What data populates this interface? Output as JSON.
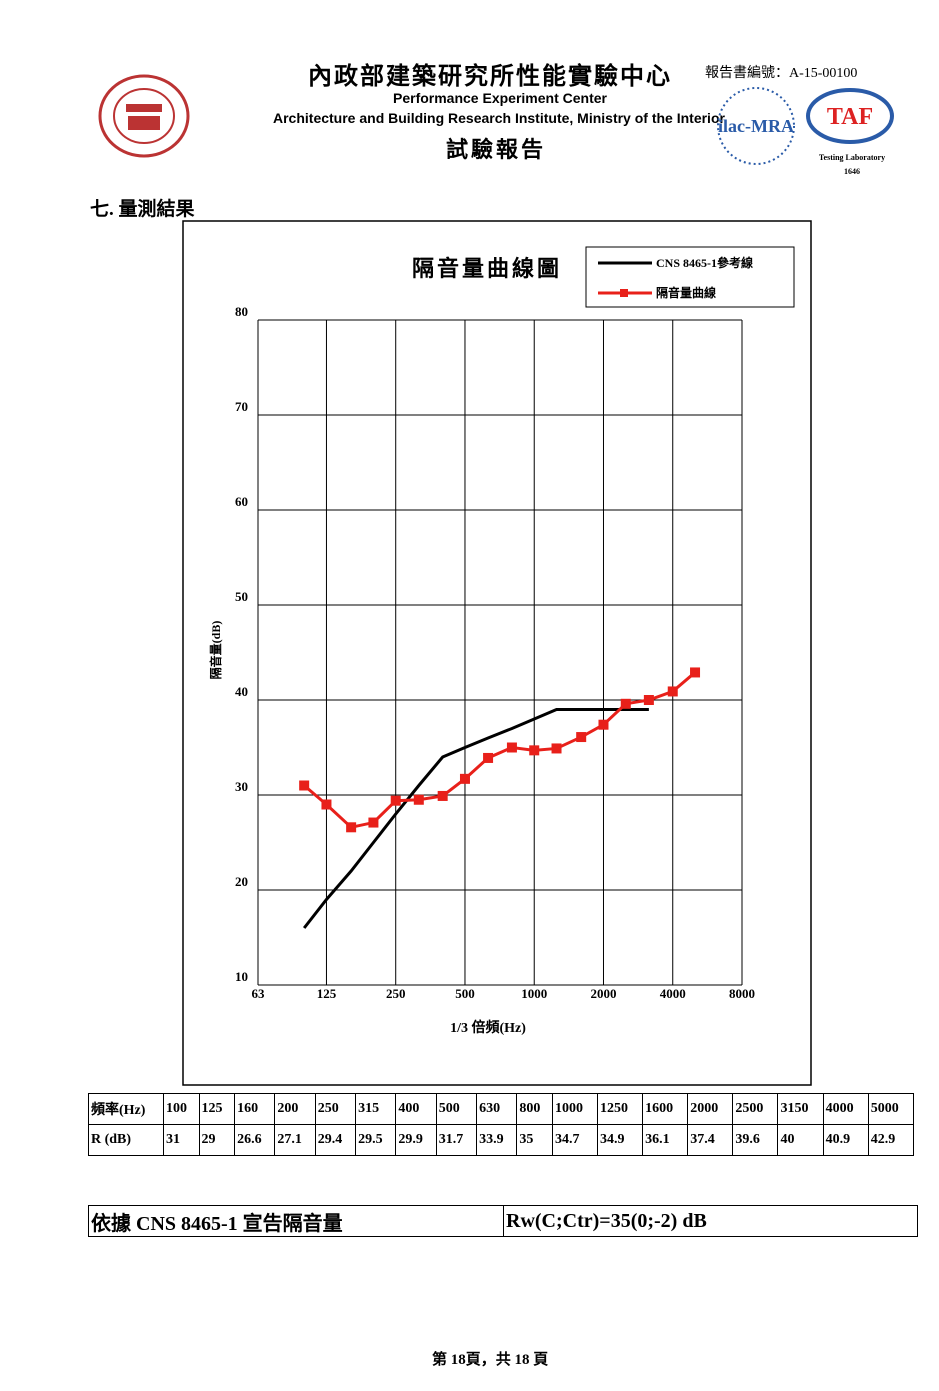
{
  "header": {
    "title_zh": "內政部建築研究所性能實驗中心",
    "title_en_1": "Performance Experiment Center",
    "title_en_2": "Architecture and Building Research Institute, Ministry of the Interior",
    "report_type": "試驗報告",
    "report_no": "報告書編號：A-15-00100",
    "ilac": "ilac-MRA",
    "taf": "TAF",
    "lab_label": "Testing Laboratory",
    "lab_no": "1646"
  },
  "section_title": "七. 量測結果",
  "chart_data": {
    "type": "line",
    "title": "隔音量曲線圖",
    "x_label": "1/3 倍頻(Hz)",
    "y_label": "隔音量(dB)",
    "x": [
      100,
      125,
      160,
      200,
      250,
      315,
      400,
      500,
      630,
      800,
      1000,
      1250,
      1600,
      2000,
      2500,
      3150,
      4000,
      5000
    ],
    "series": [
      {
        "name": "CNS 8465-1參考線",
        "color": "#000000",
        "marker": "none",
        "values": [
          16,
          19,
          22,
          25,
          28,
          31,
          34,
          35,
          36,
          37,
          38,
          39,
          39,
          39,
          39,
          39,
          null,
          null
        ]
      },
      {
        "name": "隔音量曲線",
        "color": "#e8201a",
        "marker": "square",
        "values": [
          31,
          29,
          26.6,
          27.1,
          29.4,
          29.5,
          29.9,
          31.7,
          33.9,
          35,
          34.7,
          34.9,
          36.1,
          37.4,
          39.6,
          40,
          40.9,
          42.9
        ]
      }
    ],
    "xlim": [
      63,
      8000
    ],
    "xticks": [
      63,
      125,
      250,
      500,
      1000,
      2000,
      4000,
      8000
    ],
    "log_x": true,
    "ylim": [
      10,
      80
    ],
    "yticks": [
      10,
      20,
      30,
      40,
      50,
      60,
      70,
      80
    ],
    "grid": true,
    "legend": "top-right"
  },
  "table": {
    "rows": [
      [
        "頻率(Hz)",
        "100",
        "125",
        "160",
        "200",
        "250",
        "315",
        "400",
        "500",
        "630",
        "800",
        "1000",
        "1250",
        "1600",
        "2000",
        "2500",
        "3150",
        "4000",
        "5000"
      ],
      [
        "R (dB)",
        "31",
        "29",
        "26.6",
        "27.1",
        "29.4",
        "29.5",
        "29.9",
        "31.7",
        "33.9",
        "35",
        "34.7",
        "34.9",
        "36.1",
        "37.4",
        "39.6",
        "40",
        "40.9",
        "42.9"
      ]
    ]
  },
  "declaration": [
    "依據 CNS 8465-1 宣告隔音量",
    "Rw(C;Ctr)=35(0;-2) dB"
  ],
  "footer": "第 18頁，共 18 頁"
}
